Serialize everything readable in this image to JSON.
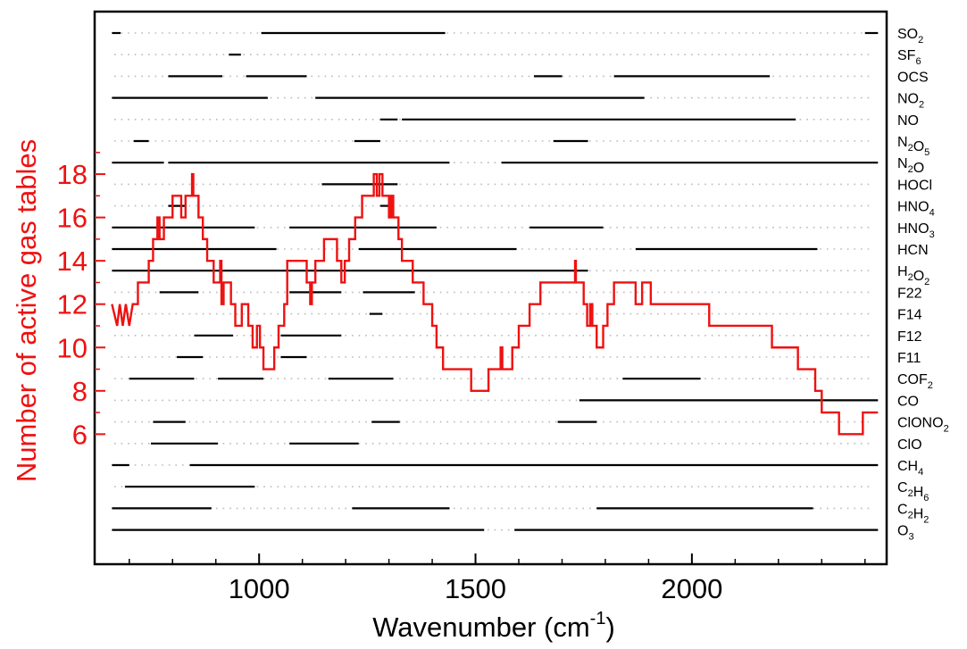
{
  "chart_data": {
    "type": "line",
    "xlabel": "Wavenumber (cm",
    "xlabel_sup": "-1",
    "xlabel_end": ")",
    "ylabel": "Number of active gas tables",
    "xlim": [
      620,
      2450
    ],
    "ylim": [
      0,
      25.5
    ],
    "x_ticks": [
      1000,
      1500,
      2000
    ],
    "y_ticks": [
      6,
      8,
      10,
      12,
      14,
      16,
      18
    ],
    "colors": {
      "series": "#ee1111",
      "axis": "#000000",
      "ylabel": "#ee1111",
      "bars": "#000000",
      "grid": "#bbbbbb"
    },
    "series": [
      {
        "points": [
          [
            660,
            12
          ],
          [
            672,
            11
          ],
          [
            678,
            12
          ],
          [
            685,
            11
          ],
          [
            692,
            12
          ],
          [
            700,
            11
          ],
          [
            708,
            12
          ],
          [
            720,
            12
          ],
          [
            720,
            13
          ],
          [
            745,
            13
          ],
          [
            745,
            14
          ],
          [
            755,
            14
          ],
          [
            755,
            15
          ],
          [
            765,
            15
          ],
          [
            765,
            16
          ],
          [
            770,
            16
          ],
          [
            770,
            15
          ],
          [
            780,
            15
          ],
          [
            780,
            16
          ],
          [
            800,
            16
          ],
          [
            800,
            17
          ],
          [
            820,
            17
          ],
          [
            820,
            16
          ],
          [
            830,
            16
          ],
          [
            830,
            17
          ],
          [
            845,
            17
          ],
          [
            845,
            18
          ],
          [
            848,
            18
          ],
          [
            848,
            17
          ],
          [
            860,
            17
          ],
          [
            860,
            16
          ],
          [
            870,
            16
          ],
          [
            870,
            15
          ],
          [
            880,
            15
          ],
          [
            880,
            14
          ],
          [
            895,
            14
          ],
          [
            895,
            13
          ],
          [
            910,
            13
          ],
          [
            910,
            14
          ],
          [
            913,
            14
          ],
          [
            913,
            12
          ],
          [
            918,
            12
          ],
          [
            918,
            13
          ],
          [
            935,
            13
          ],
          [
            935,
            12
          ],
          [
            945,
            12
          ],
          [
            945,
            11
          ],
          [
            960,
            11
          ],
          [
            960,
            12
          ],
          [
            975,
            12
          ],
          [
            975,
            11
          ],
          [
            985,
            11
          ],
          [
            985,
            10
          ],
          [
            995,
            10
          ],
          [
            995,
            11
          ],
          [
            1002,
            11
          ],
          [
            1002,
            10
          ],
          [
            1010,
            10
          ],
          [
            1010,
            9
          ],
          [
            1035,
            9
          ],
          [
            1035,
            10
          ],
          [
            1045,
            10
          ],
          [
            1045,
            11
          ],
          [
            1058,
            11
          ],
          [
            1058,
            12
          ],
          [
            1065,
            12
          ],
          [
            1065,
            14
          ],
          [
            1110,
            14
          ],
          [
            1110,
            13
          ],
          [
            1118,
            13
          ],
          [
            1118,
            12
          ],
          [
            1122,
            12
          ],
          [
            1122,
            13
          ],
          [
            1130,
            13
          ],
          [
            1130,
            14
          ],
          [
            1150,
            14
          ],
          [
            1150,
            15
          ],
          [
            1180,
            15
          ],
          [
            1180,
            14
          ],
          [
            1190,
            14
          ],
          [
            1190,
            13
          ],
          [
            1198,
            13
          ],
          [
            1198,
            14
          ],
          [
            1208,
            14
          ],
          [
            1208,
            15
          ],
          [
            1222,
            15
          ],
          [
            1222,
            16
          ],
          [
            1238,
            16
          ],
          [
            1238,
            17
          ],
          [
            1265,
            17
          ],
          [
            1265,
            18
          ],
          [
            1272,
            18
          ],
          [
            1272,
            17
          ],
          [
            1278,
            17
          ],
          [
            1278,
            18
          ],
          [
            1285,
            18
          ],
          [
            1285,
            17
          ],
          [
            1300,
            17
          ],
          [
            1300,
            16
          ],
          [
            1305,
            16
          ],
          [
            1305,
            17
          ],
          [
            1310,
            17
          ],
          [
            1310,
            16
          ],
          [
            1322,
            16
          ],
          [
            1322,
            15
          ],
          [
            1330,
            15
          ],
          [
            1330,
            14
          ],
          [
            1355,
            14
          ],
          [
            1355,
            13
          ],
          [
            1380,
            13
          ],
          [
            1380,
            12
          ],
          [
            1400,
            12
          ],
          [
            1400,
            11
          ],
          [
            1410,
            11
          ],
          [
            1410,
            10
          ],
          [
            1425,
            10
          ],
          [
            1425,
            9
          ],
          [
            1490,
            9
          ],
          [
            1490,
            8
          ],
          [
            1530,
            8
          ],
          [
            1530,
            9
          ],
          [
            1558,
            9
          ],
          [
            1558,
            10
          ],
          [
            1562,
            10
          ],
          [
            1562,
            9
          ],
          [
            1585,
            9
          ],
          [
            1585,
            10
          ],
          [
            1600,
            10
          ],
          [
            1600,
            11
          ],
          [
            1625,
            11
          ],
          [
            1625,
            12
          ],
          [
            1650,
            12
          ],
          [
            1650,
            13
          ],
          [
            1730,
            13
          ],
          [
            1730,
            14
          ],
          [
            1732,
            14
          ],
          [
            1732,
            13
          ],
          [
            1750,
            13
          ],
          [
            1750,
            12
          ],
          [
            1758,
            12
          ],
          [
            1758,
            11
          ],
          [
            1765,
            11
          ],
          [
            1765,
            12
          ],
          [
            1770,
            12
          ],
          [
            1770,
            11
          ],
          [
            1780,
            11
          ],
          [
            1780,
            10
          ],
          [
            1795,
            10
          ],
          [
            1795,
            11
          ],
          [
            1805,
            11
          ],
          [
            1805,
            12
          ],
          [
            1820,
            12
          ],
          [
            1820,
            13
          ],
          [
            1870,
            13
          ],
          [
            1870,
            12
          ],
          [
            1885,
            12
          ],
          [
            1885,
            13
          ],
          [
            1905,
            13
          ],
          [
            1905,
            12
          ],
          [
            2040,
            12
          ],
          [
            2040,
            11
          ],
          [
            2185,
            11
          ],
          [
            2185,
            10
          ],
          [
            2245,
            10
          ],
          [
            2245,
            9
          ],
          [
            2285,
            9
          ],
          [
            2285,
            8
          ],
          [
            2300,
            8
          ],
          [
            2300,
            7
          ],
          [
            2340,
            7
          ],
          [
            2340,
            6
          ],
          [
            2395,
            6
          ],
          [
            2395,
            7
          ],
          [
            2430,
            7
          ]
        ]
      }
    ],
    "gases": [
      {
        "label": "SO",
        "sub": "2",
        "segments": [
          [
            660,
            680
          ],
          [
            1005,
            1430
          ],
          [
            2400,
            2430
          ]
        ]
      },
      {
        "label": "SF",
        "sub": "6",
        "segments": [
          [
            930,
            958
          ]
        ]
      },
      {
        "label": "OCS",
        "sub": "",
        "segments": [
          [
            790,
            915
          ],
          [
            970,
            1110
          ],
          [
            1635,
            1700
          ],
          [
            1820,
            2180
          ]
        ]
      },
      {
        "label": "NO",
        "sub": "2",
        "segments": [
          [
            660,
            1020
          ],
          [
            1130,
            1890
          ]
        ]
      },
      {
        "label": "NO",
        "sub": "",
        "segments": [
          [
            1280,
            1320
          ],
          [
            1330,
            2240
          ]
        ]
      },
      {
        "label": "N",
        "sub": "2",
        "label2": "O",
        "sub2": "5",
        "segments": [
          [
            710,
            745
          ],
          [
            1220,
            1280
          ],
          [
            1680,
            1760
          ]
        ]
      },
      {
        "label": "N",
        "sub": "2",
        "label2": "O",
        "sub2": "",
        "segments": [
          [
            660,
            780
          ],
          [
            790,
            1440
          ],
          [
            1560,
            2430
          ]
        ]
      },
      {
        "label": "HOCl",
        "sub": "",
        "segments": [
          [
            1145,
            1320
          ]
        ]
      },
      {
        "label": "HNO",
        "sub": "4",
        "segments": [
          [
            790,
            830
          ],
          [
            1280,
            1310
          ]
        ]
      },
      {
        "label": "HNO",
        "sub": "3",
        "segments": [
          [
            660,
            990
          ],
          [
            1070,
            1410
          ],
          [
            1625,
            1795
          ]
        ]
      },
      {
        "label": "HCN",
        "sub": "",
        "segments": [
          [
            660,
            1040
          ],
          [
            1230,
            1595
          ],
          [
            1870,
            2290
          ]
        ]
      },
      {
        "label": "H",
        "sub": "2",
        "label2": "O",
        "sub2": "2",
        "segments": [
          [
            660,
            1760
          ]
        ]
      },
      {
        "label": "F22",
        "sub": "",
        "segments": [
          [
            770,
            860
          ],
          [
            1070,
            1190
          ],
          [
            1240,
            1360
          ]
        ]
      },
      {
        "label": "F14",
        "sub": "",
        "segments": [
          [
            1255,
            1285
          ]
        ]
      },
      {
        "label": "F12",
        "sub": "",
        "segments": [
          [
            850,
            940
          ],
          [
            1050,
            1190
          ]
        ]
      },
      {
        "label": "F11",
        "sub": "",
        "segments": [
          [
            810,
            870
          ],
          [
            1050,
            1110
          ]
        ]
      },
      {
        "label": "COF",
        "sub": "2",
        "segments": [
          [
            700,
            850
          ],
          [
            905,
            1010
          ],
          [
            1160,
            1310
          ],
          [
            1840,
            2020
          ]
        ]
      },
      {
        "label": "CO",
        "sub": "",
        "segments": [
          [
            1740,
            2430
          ]
        ]
      },
      {
        "label": "ClONO",
        "sub": "2",
        "segments": [
          [
            755,
            830
          ],
          [
            1260,
            1325
          ],
          [
            1690,
            1780
          ]
        ]
      },
      {
        "label": "ClO",
        "sub": "",
        "segments": [
          [
            750,
            905
          ],
          [
            1070,
            1230
          ]
        ]
      },
      {
        "label": "CH",
        "sub": "4",
        "segments": [
          [
            660,
            700
          ],
          [
            840,
            2430
          ]
        ]
      },
      {
        "label": "C",
        "sub": "2",
        "label2": "H",
        "sub2": "6",
        "segments": [
          [
            690,
            990
          ]
        ]
      },
      {
        "label": "C",
        "sub": "2",
        "label2": "H",
        "sub2": "2",
        "segments": [
          [
            660,
            890
          ],
          [
            1215,
            1440
          ],
          [
            1780,
            2280
          ]
        ]
      },
      {
        "label": "O",
        "sub": "3",
        "segments": [
          [
            660,
            1520
          ],
          [
            1590,
            2430
          ]
        ]
      }
    ]
  }
}
